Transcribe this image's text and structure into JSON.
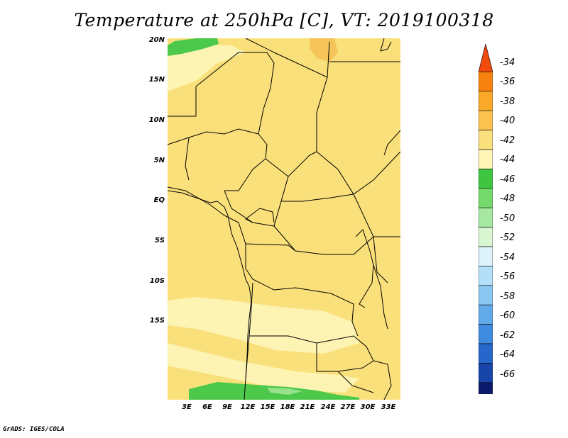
{
  "title": "Temperature at 250hPa [C], VT: 2019100318",
  "credit": "GrADS: IGES/COLA",
  "map": {
    "lat_labels": [
      "20N",
      "15N",
      "10N",
      "5N",
      "EQ",
      "5S",
      "10S",
      "15S"
    ],
    "lon_labels": [
      "3E",
      "6E",
      "9E",
      "12E",
      "15E",
      "18E",
      "21E",
      "24E",
      "27E",
      "30E",
      "33E"
    ],
    "fill_colors": {
      "base": "#fae07a",
      "light": "#fdf3b2",
      "warm": "#f5c55a",
      "green": "#4cc94a",
      "pale_green": "#97e08c"
    }
  },
  "colorbar": {
    "labels": [
      "-34",
      "-36",
      "-38",
      "-40",
      "-42",
      "-44",
      "-46",
      "-48",
      "-50",
      "-52",
      "-54",
      "-56",
      "-58",
      "-60",
      "-62",
      "-64",
      "-66"
    ],
    "colors": [
      "#f04a0c",
      "#f7820f",
      "#f9a82a",
      "#fbc451",
      "#fadf7d",
      "#fcf5b6",
      "#3fc53f",
      "#75d96c",
      "#a6e8a1",
      "#d9f6d3",
      "#def2fb",
      "#b3e0f8",
      "#8ac7f1",
      "#63aaea",
      "#3f8be0",
      "#2767cb",
      "#1746a8",
      "#0c1a6b",
      "#ddddf2"
    ]
  }
}
